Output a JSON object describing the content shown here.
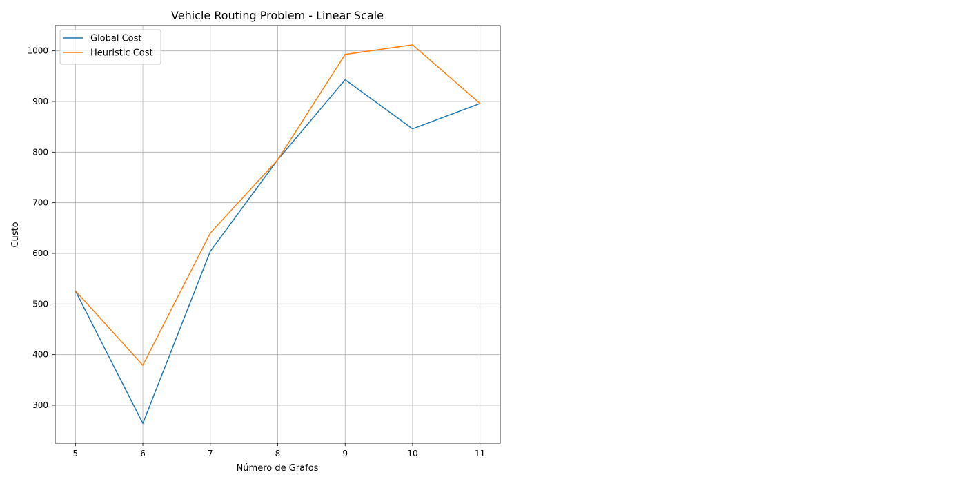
{
  "chart_data": {
    "type": "line",
    "title": "Vehicle Routing Problem - Linear Scale",
    "xlabel": "Número de Grafos",
    "ylabel": "Custo",
    "x": [
      5,
      6,
      7,
      8,
      9,
      10,
      11
    ],
    "xticks": [
      "5",
      "6",
      "7",
      "8",
      "9",
      "10",
      "11"
    ],
    "yticks": [
      "300",
      "400",
      "500",
      "600",
      "700",
      "800",
      "900",
      "1000"
    ],
    "xlim": [
      4.7,
      11.3
    ],
    "ylim": [
      225,
      1050
    ],
    "grid": true,
    "legend_position": "upper-left",
    "series": [
      {
        "name": "Global Cost",
        "color": "#1f77b4",
        "values": [
          526,
          264,
          604,
          785,
          943,
          846,
          896
        ]
      },
      {
        "name": "Heuristic Cost",
        "color": "#ff7f0e",
        "values": [
          526,
          379,
          640,
          785,
          993,
          1012,
          896
        ]
      }
    ]
  }
}
